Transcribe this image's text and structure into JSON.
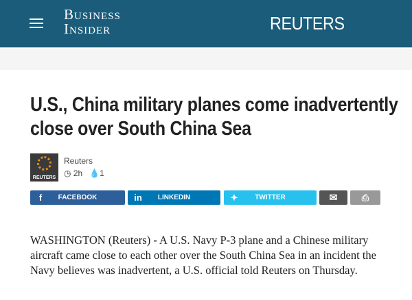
{
  "header": {
    "logo_line1": "Business",
    "logo_line2": "Insider",
    "partner": "REUTERS"
  },
  "article": {
    "title": "U.S., China military planes come inadvertently close over South China Sea",
    "author": "Reuters",
    "avatar_text": "REUTERS",
    "time": "2h",
    "comments": "1",
    "body": "WASHINGTON (Reuters) - A U.S. Navy P-3 plane and a Chinese military aircraft came close to each other over the South China Sea in an incident the Navy believes was inadvertent, a U.S. official told Reuters on Thursday."
  },
  "share": {
    "facebook": "FACEBOOK",
    "linkedin": "LINKEDIN",
    "twitter": "TWITTER"
  },
  "colors": {
    "header": "#1a5c7a",
    "facebook": "#2d5f9a",
    "linkedin": "#0077b5",
    "twitter": "#28c1ed",
    "email": "#555555",
    "print": "#999999"
  }
}
